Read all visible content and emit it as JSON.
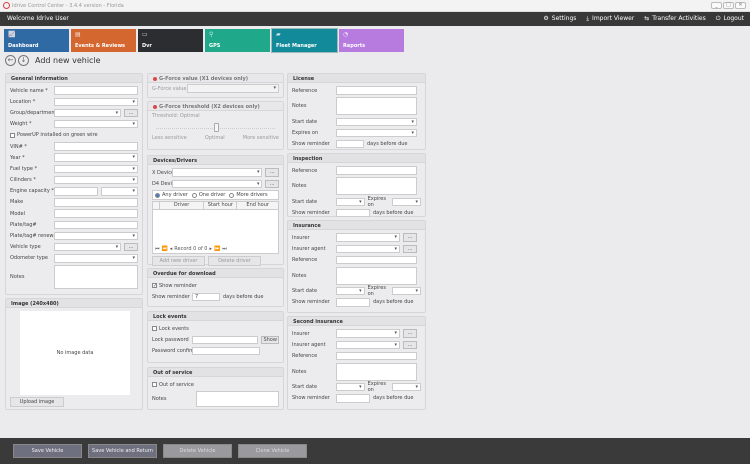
{
  "window": {
    "title": "Idrive Control Center - 3.4.4 version - Florida",
    "controls": [
      "_",
      "□",
      "✕"
    ]
  },
  "header": {
    "welcome": "Welcome Idrive User",
    "menu": [
      {
        "icon": "gears-icon",
        "glyph": "⚙",
        "label": "Settings"
      },
      {
        "icon": "import-icon",
        "glyph": "⤓",
        "label": "Import Viewer"
      },
      {
        "icon": "transfer-icon",
        "glyph": "⇆",
        "label": "Transfer Activities"
      },
      {
        "icon": "power-icon",
        "glyph": "⏻",
        "label": "Logout"
      }
    ]
  },
  "tiles": [
    {
      "label": "Dashboard",
      "color": "#2f6aa4",
      "icon": "chart-icon",
      "glyph": "📈"
    },
    {
      "label": "Events & Reviews",
      "color": "#d4672f",
      "icon": "clipboard-icon",
      "glyph": "▤"
    },
    {
      "label": "Dvr",
      "color": "#2b2d30",
      "icon": "dvr-icon",
      "glyph": "▭"
    },
    {
      "label": "GPS",
      "color": "#1fa88a",
      "icon": "pin-icon",
      "glyph": "⚲"
    },
    {
      "label": "Fleet Manager",
      "color": "#138a99",
      "icon": "truck-icon",
      "glyph": "▰"
    },
    {
      "label": "Reports",
      "color": "#b77be0",
      "icon": "pie-icon",
      "glyph": "◔"
    }
  ],
  "page": {
    "title": "Add new vehicle"
  },
  "panels": {
    "general": {
      "title": "General information",
      "rows": [
        {
          "t": "text",
          "label": "Vehicle name *"
        },
        {
          "t": "select",
          "label": "Location *"
        },
        {
          "t": "selbtn",
          "label": "Group/department",
          "btn": "..."
        },
        {
          "t": "select",
          "label": "Weight *"
        },
        {
          "t": "check",
          "label": "PowerUP installed on green wire"
        },
        {
          "t": "text",
          "label": "VIN# *"
        },
        {
          "t": "select",
          "label": "Year *"
        },
        {
          "t": "select",
          "label": "Fuel type *"
        },
        {
          "t": "select",
          "label": "Cilinders *"
        },
        {
          "t": "engine",
          "label": "Engine capacity *"
        },
        {
          "t": "text",
          "label": "Make"
        },
        {
          "t": "text",
          "label": "Model"
        },
        {
          "t": "text",
          "label": "Plate/tag#"
        },
        {
          "t": "select",
          "label": "Plate/tag# renewal"
        },
        {
          "t": "selbtn",
          "label": "Vehicle type",
          "btn": "..."
        },
        {
          "t": "select",
          "label": "Odometer type"
        },
        {
          "t": "textarea",
          "label": "Notes"
        }
      ]
    },
    "image": {
      "title": "Image (240x480)",
      "empty": "No image data",
      "upload": "Upload image"
    },
    "gforce": {
      "title": "G-Force value (X1 devices only)",
      "label": "G-Force value"
    },
    "threshold": {
      "title": "G-Force threshold (X2 devices only)",
      "caption": "Threshold: Optimal",
      "ticks": [
        "Less sensitive",
        "Optimal",
        "More sensitive"
      ],
      "level": 0.5
    },
    "devices": {
      "title": "Devices/Drivers",
      "rows": [
        {
          "t": "selbtn",
          "label": "X Device",
          "btn": "..."
        },
        {
          "t": "selbtn",
          "label": "D4 Device",
          "btn": "..."
        }
      ],
      "radios": [
        "Any driver",
        "One driver",
        "More drivers"
      ],
      "selected_radio": 0,
      "columns": [
        "Driver",
        "Start hour",
        "End hour"
      ],
      "pager": "Record 0 of 0",
      "add": "Add new driver",
      "delete": "Delete driver"
    },
    "overdue": {
      "title": "Overdue for download",
      "rows": [
        {
          "t": "check",
          "label": "Show reminder",
          "checked": true
        },
        {
          "t": "reminder",
          "label": "Show reminder",
          "value": "7",
          "suffix": "days before due"
        }
      ]
    },
    "lock": {
      "title": "Lock events",
      "rows": [
        {
          "t": "check",
          "label": "Lock events"
        },
        {
          "t": "pwshow",
          "label": "Lock password",
          "btn": "Show"
        },
        {
          "t": "pw",
          "label": "Password confirm"
        }
      ]
    },
    "outofservice": {
      "title": "Out of service",
      "rows": [
        {
          "t": "check",
          "label": "Out of service"
        },
        {
          "t": "textarea",
          "label": "Notes",
          "h": 18
        }
      ]
    },
    "license": {
      "title": "License",
      "rows": [
        {
          "t": "text",
          "label": "Reference"
        },
        {
          "t": "textarea",
          "label": "Notes",
          "h": 20
        },
        {
          "t": "select",
          "label": "Start date"
        },
        {
          "t": "select",
          "label": "Expires on"
        },
        {
          "t": "reminder",
          "label": "Show reminder",
          "suffix": "days before due"
        }
      ]
    },
    "inspection": {
      "title": "Inspection",
      "rows": [
        {
          "t": "text",
          "label": "Reference"
        },
        {
          "t": "textarea",
          "label": "Notes",
          "h": 20
        },
        {
          "t": "dates",
          "label": "Start date",
          "label2": "Expires on"
        },
        {
          "t": "reminder",
          "label": "Show reminder",
          "suffix": "days before due",
          "w": 34
        }
      ]
    },
    "insurance": {
      "title": "Insurance",
      "rows": [
        {
          "t": "selbtn",
          "label": "Insurer",
          "btn": "..."
        },
        {
          "t": "selbtn",
          "label": "Insurer agent",
          "btn": "..."
        },
        {
          "t": "text",
          "label": "Reference"
        },
        {
          "t": "textarea",
          "label": "Notes",
          "h": 20
        },
        {
          "t": "dates",
          "label": "Start date",
          "label2": "Expires on"
        },
        {
          "t": "reminder",
          "label": "Show reminder",
          "suffix": "days before due",
          "w": 34
        }
      ]
    },
    "second_insurance": {
      "title": "Second insurance",
      "rows": [
        {
          "t": "selbtn",
          "label": "Insurer",
          "btn": "..."
        },
        {
          "t": "selbtn",
          "label": "Insurer agent",
          "btn": "..."
        },
        {
          "t": "text",
          "label": "Reference"
        },
        {
          "t": "textarea",
          "label": "Notes",
          "h": 20
        },
        {
          "t": "dates",
          "label": "Start date",
          "label2": "Expires on"
        },
        {
          "t": "reminder",
          "label": "Show reminder",
          "suffix": "days before due",
          "w": 34
        }
      ]
    }
  },
  "footer": {
    "buttons": [
      {
        "label": "Save Vehicle",
        "enabled": true
      },
      {
        "label": "Save Vehicle and Return",
        "enabled": true
      },
      {
        "label": "Delete Vehicle",
        "enabled": false
      },
      {
        "label": "Clone Vehicle",
        "enabled": false
      }
    ]
  }
}
